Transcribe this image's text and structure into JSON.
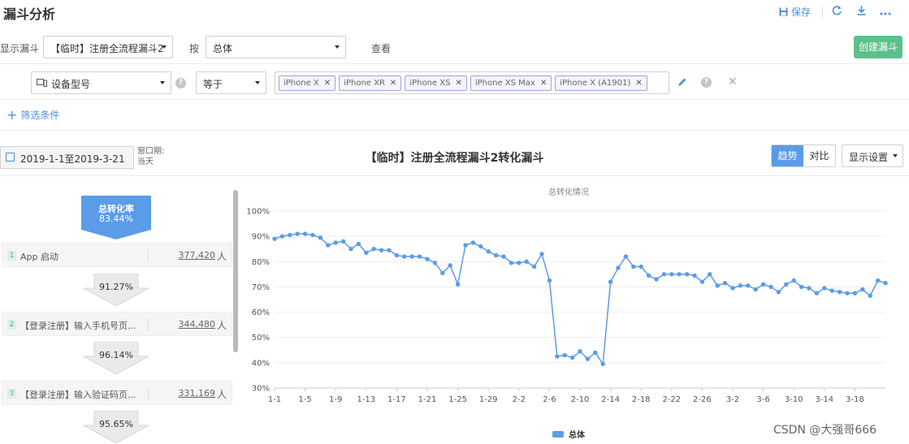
{
  "header": {
    "title": "漏斗分析",
    "save_label": "保存"
  },
  "filters": {
    "display_funnel_label": "显示漏斗",
    "funnel_select": "【临时】注册全流程漏斗2",
    "by_label": "按",
    "group_select": "总体",
    "view_label": "查看",
    "create_button": "创建漏斗",
    "property_select": "设备型号",
    "operator_select": "等于",
    "tags": [
      "iPhone X",
      "iPhone XR",
      "iPhone XS",
      "iPhone XS Max",
      "iPhone X (A1901)"
    ],
    "add_filter_label": "筛选条件"
  },
  "toolbar": {
    "date_range": "2019-1-1至2019-3-21",
    "window_label": "窗口期:",
    "window_value": "当天",
    "funnel_title": "【临时】注册全流程漏斗2转化漏斗",
    "seg_trend": "趋势",
    "seg_compare": "对比",
    "display_settings": "显示设置"
  },
  "funnel": {
    "total_label": "总转化率",
    "total_rate": "83.44%",
    "unit": "人",
    "steps": [
      {
        "num": "1",
        "name": "App 启动",
        "count": "377,420"
      },
      {
        "num": "2",
        "name": "【登录注册】输入手机号页...",
        "count": "344,480"
      },
      {
        "num": "3",
        "name": "【登录注册】输入验证码页...",
        "count": "331,169"
      }
    ],
    "rates": [
      "91.27%",
      "96.14%",
      "95.65%"
    ]
  },
  "chart_data": {
    "type": "line",
    "title": "总转化情况",
    "series": [
      {
        "name": "总体",
        "color": "#5a9ce8",
        "values": [
          89,
          90,
          90.5,
          91,
          91,
          90.5,
          89.5,
          86.5,
          87.5,
          88,
          85,
          87,
          83.5,
          85,
          84.5,
          84.5,
          82.5,
          82,
          82,
          82,
          81,
          79.5,
          75.5,
          78.5,
          71,
          86.5,
          87.5,
          86,
          84,
          82.5,
          82,
          79.5,
          79.5,
          80,
          78,
          83,
          72.5,
          42.5,
          43,
          42,
          44.5,
          41.5,
          44,
          39.5,
          72,
          77.5,
          82,
          78,
          78,
          74.5,
          73,
          75,
          75,
          75,
          75,
          74.5,
          72,
          75,
          70.5,
          71.5,
          69.5,
          70.5,
          70.5,
          69,
          71,
          70,
          68,
          71,
          72.5,
          70,
          69.5,
          67.5,
          69.5,
          68.5,
          68,
          67.5,
          67.5,
          69,
          66.5,
          72.5,
          71.5
        ]
      }
    ],
    "x_start": "2019-01-01",
    "x_end": "2019-03-21",
    "x_tick_labels": [
      "1-1",
      "1-5",
      "1-9",
      "1-13",
      "1-17",
      "1-21",
      "1-25",
      "1-29",
      "2-2",
      "2-6",
      "2-10",
      "2-14",
      "2-18",
      "2-22",
      "2-26",
      "3-2",
      "3-6",
      "3-10",
      "3-14",
      "3-18"
    ],
    "y_tick_labels": [
      "30%",
      "40%",
      "50%",
      "60%",
      "70%",
      "80%",
      "90%",
      "100%"
    ],
    "ylim": [
      30,
      100
    ],
    "grid": true,
    "legend_position": "bottom-center"
  },
  "watermark": "CSDN @大强哥666"
}
